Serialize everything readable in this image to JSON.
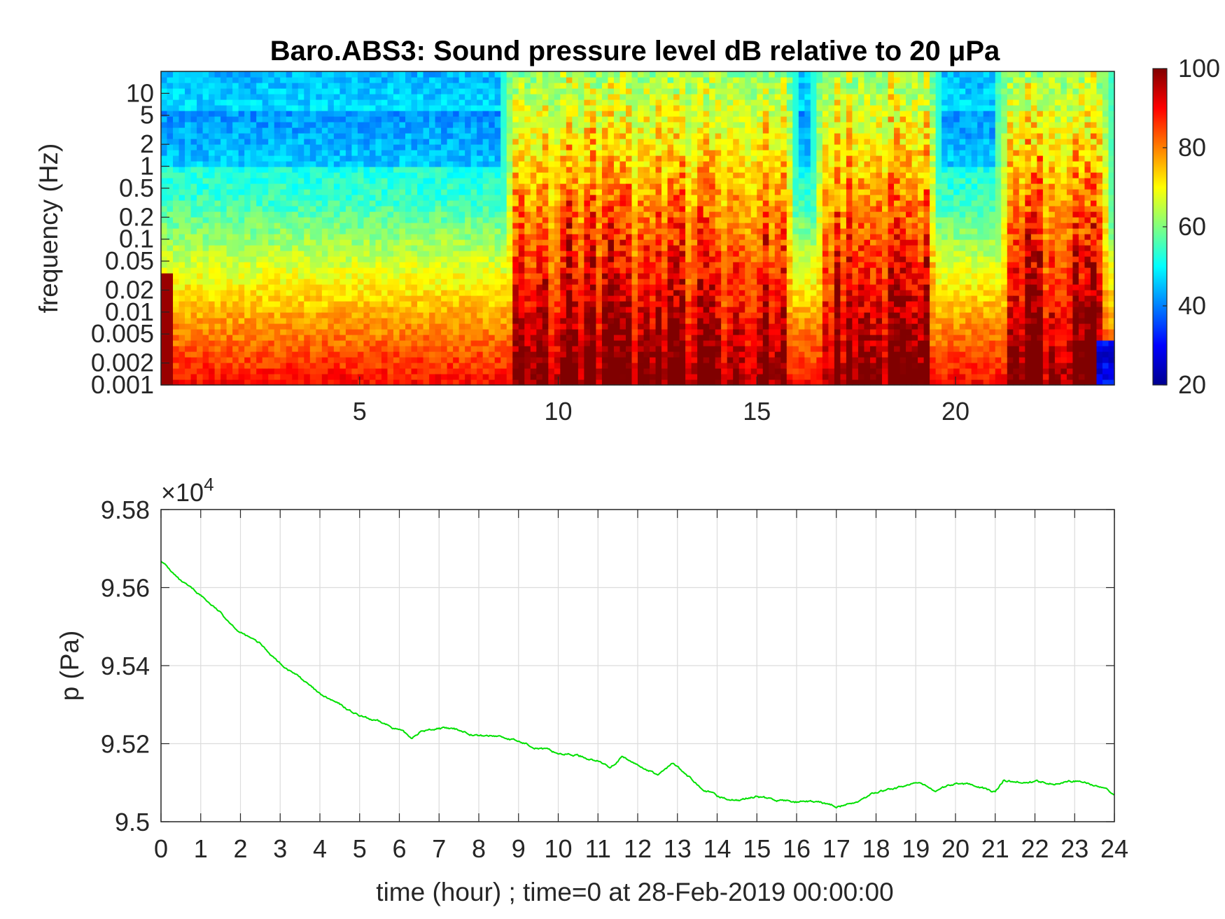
{
  "chart_data": [
    {
      "type": "heatmap",
      "title": "Baro.ABS3: Sound pressure level dB relative to 20 μPa",
      "ylabel": "frequency (Hz)",
      "xlabel": "",
      "yscale": "log",
      "xlim": [
        0,
        24
      ],
      "ylim": [
        0.001,
        20
      ],
      "x_ticks": [
        "5",
        "10",
        "15",
        "20"
      ],
      "x_tick_values": [
        5,
        10,
        15,
        20
      ],
      "y_ticks": [
        "0.001",
        "0.002",
        "0.005",
        "0.01",
        "0.02",
        "0.05",
        "0.1",
        "0.2",
        "0.5",
        "1",
        "2",
        "5",
        "10"
      ],
      "y_tick_values": [
        0.001,
        0.002,
        0.005,
        0.01,
        0.02,
        0.05,
        0.1,
        0.2,
        0.5,
        1,
        2,
        5,
        10
      ],
      "colorbar": {
        "colormap": "jet",
        "clim": [
          20,
          100
        ],
        "ticks": [
          "20",
          "40",
          "60",
          "80",
          "100"
        ],
        "tick_values": [
          20,
          40,
          60,
          80,
          100
        ]
      },
      "quiet_band_db": 52,
      "active_hour_intervals": [
        [
          8.6,
          16.0
        ],
        [
          16.4,
          19.6
        ],
        [
          21.0,
          24.0
        ]
      ]
    },
    {
      "type": "line",
      "title": "",
      "ylabel": "p (Pa)",
      "xlabel": "time (hour) ; time=0 at 28-Feb-2019 00:00:00",
      "xlim": [
        0,
        24
      ],
      "ylim": [
        95000,
        95800
      ],
      "y_multiplier_label": "×10",
      "y_multiplier_exp": "4",
      "x_ticks": [
        "0",
        "1",
        "2",
        "3",
        "4",
        "5",
        "6",
        "7",
        "8",
        "9",
        "10",
        "11",
        "12",
        "13",
        "14",
        "15",
        "16",
        "17",
        "18",
        "19",
        "20",
        "21",
        "22",
        "23",
        "24"
      ],
      "y_ticks": [
        "9.5",
        "9.52",
        "9.54",
        "9.56",
        "9.58"
      ],
      "y_tick_values": [
        95000,
        95200,
        95400,
        95600,
        95800
      ],
      "grid": true,
      "line_color": "#00e000",
      "series": [
        {
          "x": [
            0,
            0.5,
            1,
            1.5,
            2,
            2.5,
            3,
            3.5,
            4,
            4.5,
            5,
            5.5,
            6,
            6.3,
            6.5,
            7,
            7.5,
            8,
            8.5,
            9,
            9.5,
            10,
            10.5,
            11,
            11.3,
            11.6,
            12,
            12.5,
            12.9,
            13.2,
            13.6,
            14,
            14.5,
            15,
            15.5,
            16,
            16.5,
            17,
            17.4,
            18,
            18.5,
            19,
            19.5,
            20,
            20.5,
            21,
            21.2,
            21.6,
            22,
            22.5,
            23,
            23.5,
            24
          ],
          "y": [
            95670,
            95615,
            95580,
            95535,
            95485,
            95455,
            95405,
            95370,
            95325,
            95300,
            95270,
            95255,
            95235,
            95215,
            95230,
            95240,
            95235,
            95220,
            95220,
            95205,
            95190,
            95175,
            95170,
            95155,
            95140,
            95165,
            95145,
            95120,
            95150,
            95120,
            95090,
            95065,
            95055,
            95065,
            95055,
            95050,
            95050,
            95040,
            95045,
            95075,
            95085,
            95100,
            95080,
            95098,
            95095,
            95075,
            95105,
            95102,
            95103,
            95100,
            95105,
            95095,
            95070
          ]
        }
      ]
    }
  ]
}
